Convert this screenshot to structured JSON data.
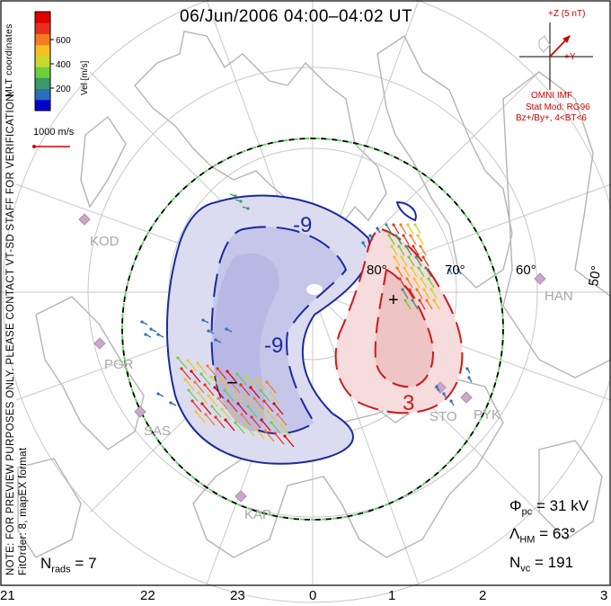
{
  "title": "06/Jun/2006 04:00–04:02 UT",
  "side_text": {
    "line1": "NOTE: FOR PREVIEW PURPOSES ONLY. PLEASE CONTACT VT-SD STAFF FOR VERIFICATION.",
    "line2": "FitOrder: 8, mapEX format",
    "coords": "MLT coordinates"
  },
  "colorbar": {
    "label": "Vel [m/s]",
    "ticks": [
      "600",
      "400",
      "200"
    ],
    "colors": [
      "#0000d0",
      "#2a6fb8",
      "#3a9a6a",
      "#6fcf3a",
      "#c8d830",
      "#f5c020",
      "#f57a20",
      "#e83020",
      "#e00000"
    ]
  },
  "vector_scale": {
    "label": "1000 m/s",
    "color": "#d00000"
  },
  "imf": {
    "z_label": "+Z (5 nT)",
    "y_label": "+Y",
    "model_title": "OMNI IMF",
    "stat_line1": "Stat Mod: RG96",
    "stat_line2": "Bz+/By+, 4<BT<6",
    "color": "#d00000"
  },
  "stats": {
    "phi": {
      "sym": "Φ",
      "sub": "pc",
      "value": "= 31 kV"
    },
    "lambda": {
      "sym": "Λ",
      "sub": "HM",
      "value": "= 63°"
    },
    "nvc": {
      "sym": "N",
      "sub": "vc",
      "value": "= 191"
    },
    "nrads": {
      "sym": "N",
      "sub": "rads",
      "value": "= 7"
    }
  },
  "mlt_labels": [
    "21",
    "22",
    "23",
    "0",
    "1",
    "2",
    "3"
  ],
  "latitude_labels": [
    "80°",
    "70°",
    "60°",
    "50°"
  ],
  "stations": [
    "KOD",
    "PGR",
    "SAS",
    "KAP",
    "HAN",
    "STO",
    "PYK"
  ],
  "contours": {
    "neg_label": "-9",
    "neg_label2": "-9",
    "pos_label": "3",
    "min_marker": "−",
    "max_marker": "+"
  },
  "colors": {
    "neg_fill": "#dcdcf0",
    "neg_fill_inner": "#b8b8e4",
    "pos_fill": "#f6dcdc",
    "pos_fill_inner": "#eec4c4",
    "neg_line": "#1a2aa0",
    "pos_line": "#d01818",
    "coast": "#b4b4b4",
    "hmb_green": "#5ad25a"
  }
}
